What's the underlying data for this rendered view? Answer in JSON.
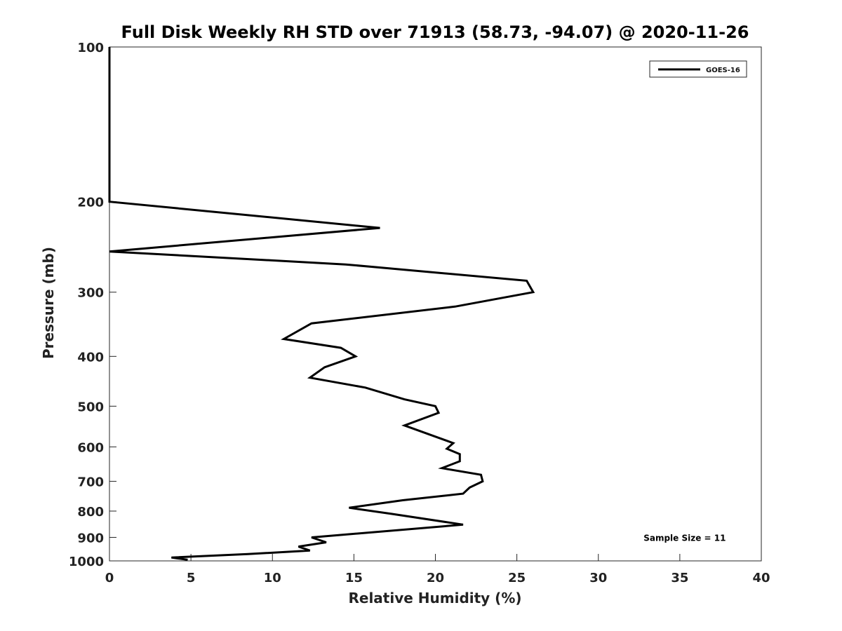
{
  "chart_data": {
    "type": "line",
    "title": "Full Disk Weekly RH STD over 71913 (58.73, -94.07) @ 2020-11-26",
    "xlabel": "Relative Humidity (%)",
    "ylabel": "Pressure (mb)",
    "xlim": [
      0,
      40
    ],
    "ylim": [
      1000,
      100
    ],
    "yscale": "log",
    "x_ticks": [
      "0",
      "5",
      "10",
      "15",
      "20",
      "25",
      "30",
      "35",
      "40"
    ],
    "y_ticks": [
      "100",
      "200",
      "300",
      "400",
      "500",
      "600",
      "700",
      "800",
      "900",
      "1000"
    ],
    "grid": false,
    "legend_position": "top-right",
    "series": [
      {
        "name": "GOES-16",
        "color": "#000000",
        "points": [
          {
            "x": 0.0,
            "y": 100
          },
          {
            "x": 0.0,
            "y": 150
          },
          {
            "x": 0.0,
            "y": 200
          },
          {
            "x": 16.6,
            "y": 225
          },
          {
            "x": 0.0,
            "y": 250
          },
          {
            "x": 14.5,
            "y": 265
          },
          {
            "x": 25.6,
            "y": 285
          },
          {
            "x": 26.0,
            "y": 300
          },
          {
            "x": 21.2,
            "y": 320
          },
          {
            "x": 12.4,
            "y": 345
          },
          {
            "x": 10.7,
            "y": 370
          },
          {
            "x": 14.2,
            "y": 385
          },
          {
            "x": 15.1,
            "y": 400
          },
          {
            "x": 13.2,
            "y": 420
          },
          {
            "x": 12.3,
            "y": 440
          },
          {
            "x": 15.7,
            "y": 460
          },
          {
            "x": 18.1,
            "y": 485
          },
          {
            "x": 20.0,
            "y": 500
          },
          {
            "x": 20.2,
            "y": 515
          },
          {
            "x": 18.1,
            "y": 545
          },
          {
            "x": 21.1,
            "y": 590
          },
          {
            "x": 20.7,
            "y": 605
          },
          {
            "x": 21.5,
            "y": 620
          },
          {
            "x": 21.5,
            "y": 640
          },
          {
            "x": 20.4,
            "y": 660
          },
          {
            "x": 22.8,
            "y": 680
          },
          {
            "x": 22.9,
            "y": 700
          },
          {
            "x": 22.1,
            "y": 720
          },
          {
            "x": 21.7,
            "y": 740
          },
          {
            "x": 18.0,
            "y": 762
          },
          {
            "x": 14.7,
            "y": 788
          },
          {
            "x": 17.3,
            "y": 810
          },
          {
            "x": 21.7,
            "y": 850
          },
          {
            "x": 12.4,
            "y": 900
          },
          {
            "x": 13.3,
            "y": 920
          },
          {
            "x": 11.6,
            "y": 938
          },
          {
            "x": 12.3,
            "y": 955
          },
          {
            "x": 8.5,
            "y": 970
          },
          {
            "x": 3.8,
            "y": 985
          },
          {
            "x": 4.8,
            "y": 995
          }
        ]
      }
    ],
    "annotations": [
      {
        "text": "Sample Size = 11",
        "x": 35.3,
        "y": 900
      }
    ]
  }
}
